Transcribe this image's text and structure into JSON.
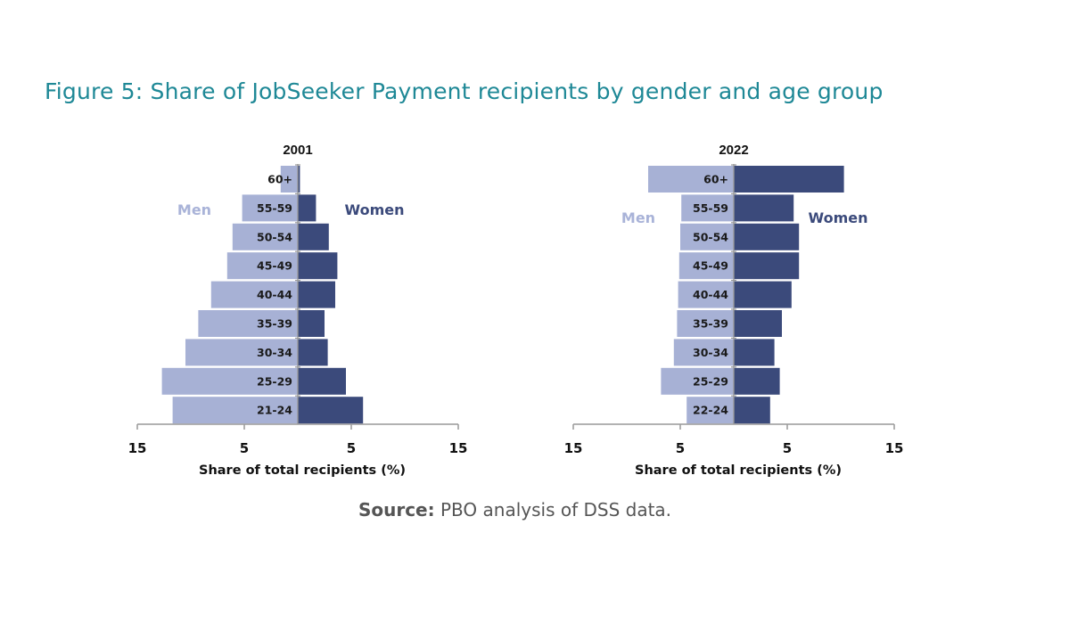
{
  "title": "Figure 5: Share of JobSeeker Payment recipients by gender and age group",
  "source": {
    "label": "Source:",
    "text": " PBO analysis of DSS data."
  },
  "colors": {
    "men": "#a7b1d5",
    "women": "#3b4a7b",
    "title": "#1e8896",
    "axis": "#999999",
    "men_label": "#a9b3d8",
    "women_label": "#3b4a7b"
  },
  "chart_data": [
    {
      "type": "bar",
      "orientation": "horizontal-pyramid",
      "title": "2001",
      "xlabel": "Share of total recipients (%)",
      "xlim": [
        -15,
        15
      ],
      "x_ticks": [
        -15,
        -5,
        5,
        15
      ],
      "x_tick_labels": [
        "15",
        "5",
        "5",
        "15"
      ],
      "categories": [
        "60+",
        "55-59",
        "50-54",
        "45-49",
        "40-44",
        "35-39",
        "30-34",
        "25-29",
        "21-24"
      ],
      "series": [
        {
          "name": "Men",
          "values": [
            1.6,
            5.2,
            6.1,
            6.6,
            8.1,
            9.3,
            10.5,
            12.7,
            11.7
          ]
        },
        {
          "name": "Women",
          "values": [
            0.2,
            1.7,
            2.9,
            3.7,
            3.5,
            2.5,
            2.8,
            4.5,
            6.1
          ]
        }
      ],
      "legend": [
        "Men",
        "Women"
      ]
    },
    {
      "type": "bar",
      "orientation": "horizontal-pyramid",
      "title": "2022",
      "xlabel": "Share of total recipients (%)",
      "xlim": [
        -15,
        15
      ],
      "x_ticks": [
        -15,
        -5,
        5,
        15
      ],
      "x_tick_labels": [
        "15",
        "5",
        "5",
        "15"
      ],
      "categories": [
        "60+",
        "55-59",
        "50-54",
        "45-49",
        "40-44",
        "35-39",
        "30-34",
        "25-29",
        "22-24"
      ],
      "series": [
        {
          "name": "Men",
          "values": [
            8.0,
            4.9,
            5.0,
            5.1,
            5.2,
            5.3,
            5.6,
            6.8,
            4.4
          ]
        },
        {
          "name": "Women",
          "values": [
            10.3,
            5.6,
            6.1,
            6.1,
            5.4,
            4.5,
            3.8,
            4.3,
            3.4
          ]
        }
      ],
      "legend": [
        "Men",
        "Women"
      ]
    }
  ]
}
